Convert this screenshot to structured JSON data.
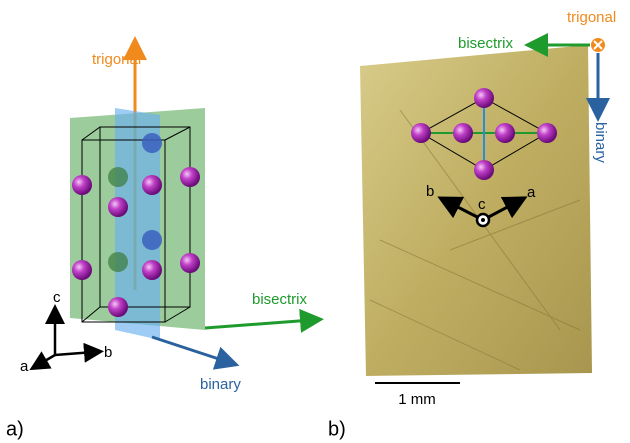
{
  "panel_a": {
    "label": "a)",
    "trigonal": "trigonal",
    "bisectrix": "bisectrix",
    "binary": "binary",
    "axis_c": "c",
    "axis_a": "a",
    "axis_b": "b"
  },
  "panel_b": {
    "label": "b)",
    "trigonal": "trigonal",
    "bisectrix": "bisectrix",
    "binary": "binary",
    "axis_b": "b",
    "axis_a": "a",
    "axis_c": "c",
    "scale_bar": "1 mm"
  }
}
